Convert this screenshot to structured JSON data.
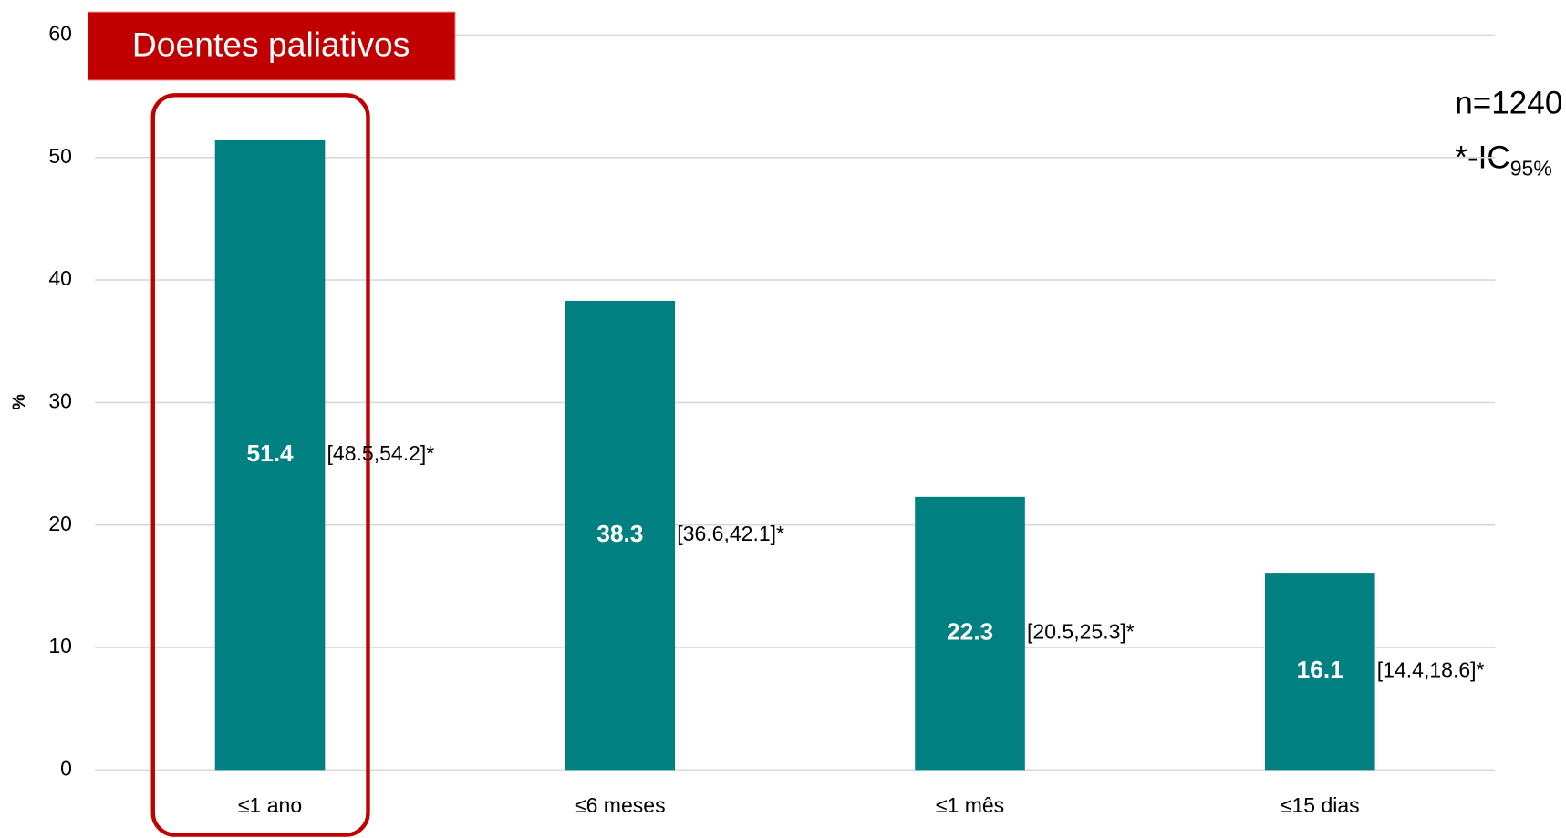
{
  "chart_data": {
    "type": "bar",
    "title": "Doentes paliativos",
    "y_label": "%",
    "categories": [
      "≤1 ano",
      "≤6 meses",
      "≤1 mês",
      "≤15 dias"
    ],
    "values": [
      51.4,
      38.3,
      22.3,
      16.1
    ],
    "interval_labels": [
      "[48.5,54.2]*",
      "[36.6,42.1]*",
      "[20.5,25.3]*",
      "[14.4,18.6]*"
    ],
    "color": "#008080",
    "ylim": [
      0,
      60
    ],
    "yticks": [
      0,
      10,
      20,
      30,
      40,
      50,
      60
    ],
    "grid": true,
    "annotations": {
      "sample": "n=1240",
      "note": "*-IC",
      "note_subscript": "95%"
    }
  }
}
